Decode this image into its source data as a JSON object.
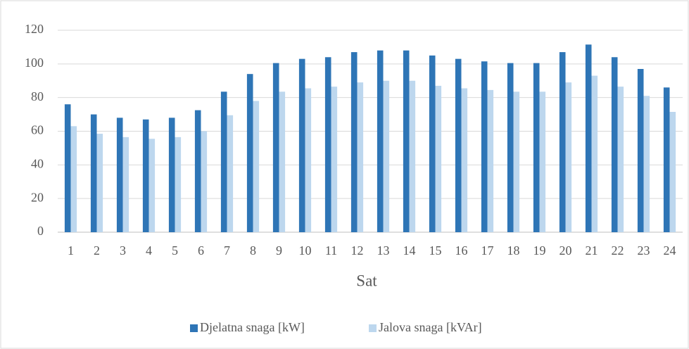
{
  "chart_data": {
    "type": "bar",
    "x_label": "Sat",
    "categories": [
      "1",
      "2",
      "3",
      "4",
      "5",
      "6",
      "7",
      "8",
      "9",
      "10",
      "11",
      "12",
      "13",
      "14",
      "15",
      "16",
      "17",
      "18",
      "19",
      "20",
      "21",
      "22",
      "23",
      "24"
    ],
    "series": [
      {
        "name": "Djelatna snaga [kW]",
        "color": "#2e75b6",
        "values": [
          76,
          70,
          68,
          67,
          68,
          72.5,
          83.5,
          94,
          100.5,
          103,
          104,
          107,
          108,
          108,
          105,
          103,
          101.5,
          100.5,
          100.5,
          107,
          111.5,
          104,
          97,
          86
        ]
      },
      {
        "name": "Jalova snaga [kVAr]",
        "color": "#bdd7ee",
        "values": [
          63,
          58.5,
          56.5,
          55.5,
          56.5,
          60,
          69.5,
          78,
          83.5,
          85.5,
          86.5,
          89,
          90,
          90,
          87,
          85.5,
          84.5,
          83.5,
          83.5,
          89,
          93,
          86.5,
          81,
          71.5
        ]
      }
    ],
    "ylim": [
      0,
      120
    ],
    "yticks": [
      0,
      20,
      40,
      60,
      80,
      100,
      120
    ],
    "grid": true,
    "legend": "bottom"
  }
}
